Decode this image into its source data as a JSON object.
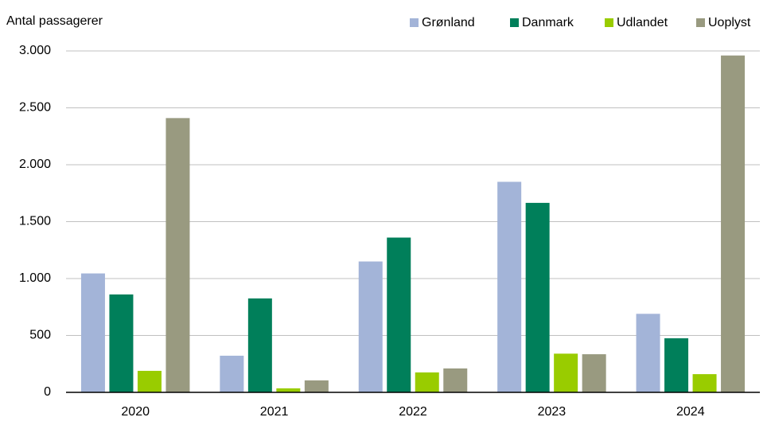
{
  "chart_data": {
    "type": "bar",
    "y_axis_label": "Antal passagerer",
    "categories": [
      "2020",
      "2021",
      "2022",
      "2023",
      "2024"
    ],
    "series": [
      {
        "name": "Grønland",
        "color": "#a3b4d8",
        "values": [
          1045,
          322,
          1150,
          1850,
          690
        ]
      },
      {
        "name": "Danmark",
        "color": "#007f5a",
        "values": [
          860,
          825,
          1360,
          1665,
          475
        ]
      },
      {
        "name": "Udlandet",
        "color": "#99cc00",
        "values": [
          189,
          35,
          175,
          340,
          160
        ]
      },
      {
        "name": "Uoplyst",
        "color": "#999a80",
        "values": [
          2410,
          105,
          210,
          335,
          2960
        ]
      }
    ],
    "ylim": [
      0,
      3000
    ],
    "yticks": [
      0,
      500,
      {
        "value": 1000,
        "label": "1.000"
      },
      {
        "value": 1500,
        "label": "1.500"
      },
      {
        "value": 2000,
        "label": "2.000"
      },
      {
        "value": 2500,
        "label": "2.500"
      },
      {
        "value": 3000,
        "label": "3.000"
      }
    ],
    "grid": true,
    "legend_position": "top-right"
  }
}
